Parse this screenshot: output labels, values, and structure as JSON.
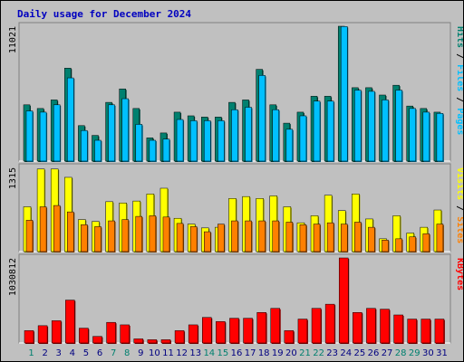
{
  "title": "Daily usage for December 2024",
  "colors": {
    "pages": "#00c0ff",
    "files": "#00c0ff",
    "hits": "#00806f",
    "sites": "#ff8000",
    "visits": "#ffff00",
    "kbytes": "#ff0000",
    "weekend": "#00806f",
    "weekday": "#000080"
  },
  "legend": {
    "hits_panel": [
      "Pages",
      "Files",
      "Hits"
    ],
    "visits_panel": [
      "Sites",
      "Visits"
    ],
    "kbytes_panel": [
      "KBytes"
    ]
  },
  "chart_data": [
    {
      "type": "bar",
      "name": "hits-files-pages",
      "ymax_label": "11021",
      "ylim": [
        0,
        11021
      ],
      "categories": [
        "1",
        "2",
        "3",
        "4",
        "5",
        "6",
        "7",
        "8",
        "9",
        "10",
        "11",
        "12",
        "13",
        "14",
        "15",
        "16",
        "17",
        "18",
        "19",
        "20",
        "21",
        "22",
        "23",
        "24",
        "25",
        "26",
        "27",
        "28",
        "29",
        "30",
        "31"
      ],
      "series": [
        {
          "name": "Hits",
          "values": [
            4600,
            4300,
            5000,
            7600,
            2900,
            2100,
            4800,
            5900,
            4300,
            1900,
            2300,
            4000,
            3700,
            3600,
            3600,
            4800,
            5000,
            7500,
            4600,
            3100,
            4000,
            5300,
            5300,
            11021,
            6000,
            6000,
            5400,
            6200,
            4500,
            4300,
            4000
          ]
        },
        {
          "name": "Files",
          "values": [
            4100,
            4000,
            4600,
            6800,
            2500,
            1700,
            4600,
            5100,
            3000,
            1700,
            1800,
            3400,
            3300,
            3300,
            3300,
            4200,
            4400,
            7000,
            4200,
            2600,
            3700,
            4900,
            4900,
            11000,
            5800,
            5700,
            5000,
            5800,
            4300,
            4000,
            3900
          ]
        },
        {
          "name": "Pages",
          "values": [
            4100,
            4000,
            4600,
            6800,
            2500,
            1700,
            4600,
            5100,
            3000,
            1700,
            1800,
            3400,
            3300,
            3300,
            3300,
            4200,
            4400,
            7000,
            4200,
            2600,
            3700,
            4900,
            4900,
            11000,
            5800,
            5700,
            5000,
            5800,
            4300,
            4000,
            3900
          ]
        }
      ]
    },
    {
      "type": "bar",
      "name": "sites-visits",
      "ymax_label": "1315",
      "ylim": [
        0,
        1315
      ],
      "categories": [
        "1",
        "2",
        "3",
        "4",
        "5",
        "6",
        "7",
        "8",
        "9",
        "10",
        "11",
        "12",
        "13",
        "14",
        "15",
        "16",
        "17",
        "18",
        "19",
        "20",
        "21",
        "22",
        "23",
        "24",
        "25",
        "26",
        "27",
        "28",
        "29",
        "30",
        "31"
      ],
      "series": [
        {
          "name": "Visits",
          "values": [
            700,
            1290,
            1290,
            1160,
            500,
            470,
            780,
            760,
            790,
            900,
            990,
            520,
            430,
            370,
            380,
            830,
            860,
            830,
            870,
            700,
            450,
            560,
            880,
            640,
            900,
            510,
            200,
            560,
            290,
            380,
            650
          ]
        },
        {
          "name": "Sites",
          "values": [
            490,
            700,
            720,
            620,
            420,
            390,
            480,
            500,
            550,
            560,
            540,
            440,
            390,
            310,
            430,
            480,
            480,
            480,
            480,
            460,
            420,
            430,
            450,
            430,
            460,
            380,
            180,
            200,
            230,
            280,
            430
          ]
        }
      ]
    },
    {
      "type": "bar",
      "name": "kbytes",
      "ymax_label": "1030812",
      "ylim": [
        0,
        1030812
      ],
      "categories": [
        "1",
        "2",
        "3",
        "4",
        "5",
        "6",
        "7",
        "8",
        "9",
        "10",
        "11",
        "12",
        "13",
        "14",
        "15",
        "16",
        "17",
        "18",
        "19",
        "20",
        "21",
        "22",
        "23",
        "24",
        "25",
        "26",
        "27",
        "28",
        "29",
        "30",
        "31"
      ],
      "series": [
        {
          "name": "KBytes",
          "values": [
            150000,
            210000,
            270000,
            520000,
            180000,
            80000,
            250000,
            220000,
            50000,
            40000,
            40000,
            150000,
            220000,
            310000,
            260000,
            300000,
            300000,
            370000,
            420000,
            150000,
            290000,
            420000,
            470000,
            1030812,
            370000,
            420000,
            410000,
            340000,
            290000,
            290000,
            290000
          ]
        }
      ]
    }
  ],
  "x_label_colors": [
    "weekend",
    "weekday",
    "weekday",
    "weekday",
    "weekday",
    "weekday",
    "weekend",
    "weekend",
    "weekday",
    "weekday",
    "weekday",
    "weekday",
    "weekday",
    "weekend",
    "weekend",
    "weekday",
    "weekday",
    "weekday",
    "weekday",
    "weekday",
    "weekend",
    "weekend",
    "weekday",
    "weekday",
    "weekday",
    "weekday",
    "weekday",
    "weekend",
    "weekend",
    "weekday",
    "weekday"
  ]
}
